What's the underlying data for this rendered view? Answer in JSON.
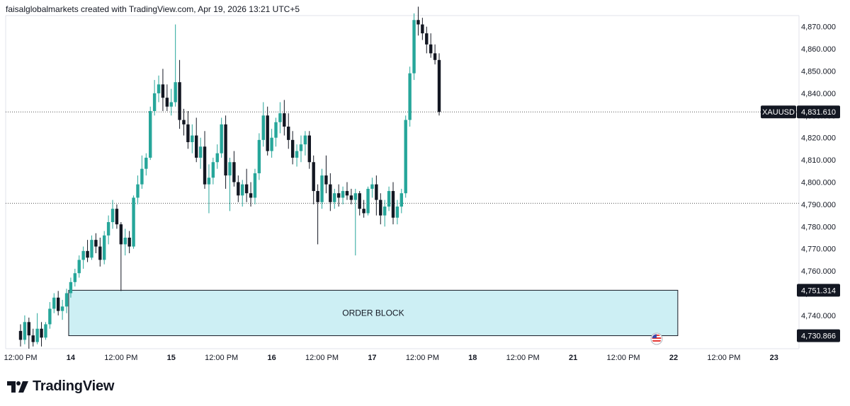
{
  "header": {
    "credit": "faisalglobalmarkets created with TradingView.com, Apr 19, 2026 13:21 UTC+5"
  },
  "brand": {
    "name": "TradingView",
    "logo_icon": "tradingview-logo-icon"
  },
  "colors": {
    "up": "#26a69a",
    "down": "#131722",
    "order_block_fill": "#cdeff4",
    "order_block_border": "#131722",
    "label_bg": "#131722",
    "label_text": "#ffffff",
    "dotted_line": "#555555"
  },
  "chart_data": {
    "type": "candlestick",
    "symbol": "XAUUSD",
    "last_price": "4,831.610",
    "ylim": [
      4725,
      4875
    ],
    "y_ticks": [
      "4,870.000",
      "4,860.000",
      "4,850.000",
      "4,840.000",
      "4,830.000",
      "4,820.000",
      "4,810.000",
      "4,800.000",
      "4,790.000",
      "4,780.000",
      "4,770.000",
      "4,760.000",
      "4,750.000",
      "4,740.000"
    ],
    "y_tick_values": [
      4870,
      4860,
      4850,
      4840,
      4830,
      4820,
      4810,
      4800,
      4790,
      4780,
      4770,
      4760,
      4750,
      4740
    ],
    "x_ticks": [
      "12:00 PM",
      "14",
      "12:00 PM",
      "15",
      "12:00 PM",
      "16",
      "12:00 PM",
      "17",
      "12:00 PM",
      "18",
      "12:00 PM",
      "21",
      "12:00 PM",
      "22",
      "12:00 PM",
      "23"
    ],
    "x_tick_bars": [
      0,
      12,
      24,
      36,
      48,
      60,
      72,
      84,
      96,
      108,
      120,
      132,
      144,
      156,
      168,
      180
    ],
    "horizontal_levels": [
      4831.61,
      4790.5
    ],
    "order_block": {
      "label": "ORDER BLOCK",
      "top_label": "4,751.314",
      "bottom_label": "4,730.866",
      "top": 4751.314,
      "bottom": 4730.866,
      "start_bar": 11.5,
      "end_bar": 157
    },
    "event_icon": "us-flag-icon",
    "candles": [
      [
        4733,
        4736,
        4726,
        4729
      ],
      [
        4729,
        4740,
        4727,
        4737
      ],
      [
        4737,
        4739,
        4725,
        4731
      ],
      [
        4731,
        4734,
        4726,
        4728
      ],
      [
        4728,
        4741,
        4727,
        4734
      ],
      [
        4734,
        4737,
        4726,
        4730
      ],
      [
        4730,
        4737,
        4729,
        4736
      ],
      [
        4736,
        4746,
        4734,
        4743
      ],
      [
        4743,
        4750,
        4741,
        4748
      ],
      [
        4748,
        4751,
        4740,
        4742
      ],
      [
        4742,
        4747,
        4738,
        4744
      ],
      [
        4744,
        4752,
        4741,
        4750
      ],
      [
        4750,
        4757,
        4748,
        4755
      ],
      [
        4755,
        4761,
        4753,
        4759
      ],
      [
        4759,
        4767,
        4757,
        4765
      ],
      [
        4765,
        4771,
        4761,
        4769
      ],
      [
        4769,
        4774,
        4764,
        4766
      ],
      [
        4766,
        4776,
        4765,
        4774
      ],
      [
        4774,
        4777,
        4768,
        4771
      ],
      [
        4771,
        4775,
        4762,
        4765
      ],
      [
        4765,
        4778,
        4763,
        4776
      ],
      [
        4776,
        4785,
        4772,
        4782
      ],
      [
        4782,
        4792,
        4779,
        4788
      ],
      [
        4788,
        4790,
        4779,
        4781
      ],
      [
        4781,
        4782,
        4751,
        4772
      ],
      [
        4772,
        4779,
        4767,
        4775
      ],
      [
        4775,
        4778,
        4768,
        4771
      ],
      [
        4771,
        4794,
        4770,
        4793
      ],
      [
        4793,
        4803,
        4790,
        4799
      ],
      [
        4799,
        4812,
        4797,
        4806
      ],
      [
        4806,
        4813,
        4803,
        4811
      ],
      [
        4811,
        4834,
        4810,
        4832
      ],
      [
        4832,
        4846,
        4830,
        4840
      ],
      [
        4840,
        4848,
        4836,
        4844
      ],
      [
        4844,
        4851,
        4832,
        4838
      ],
      [
        4838,
        4844,
        4832,
        4834
      ],
      [
        4834,
        4842,
        4830,
        4836
      ],
      [
        4836,
        4871,
        4834,
        4845
      ],
      [
        4845,
        4855,
        4824,
        4828
      ],
      [
        4828,
        4833,
        4821,
        4826
      ],
      [
        4826,
        4832,
        4815,
        4818
      ],
      [
        4818,
        4826,
        4813,
        4821
      ],
      [
        4821,
        4829,
        4809,
        4811
      ],
      [
        4811,
        4820,
        4806,
        4816
      ],
      [
        4816,
        4823,
        4797,
        4799
      ],
      [
        4799,
        4808,
        4786,
        4802
      ],
      [
        4802,
        4811,
        4799,
        4809
      ],
      [
        4809,
        4817,
        4806,
        4813
      ],
      [
        4813,
        4829,
        4811,
        4826
      ],
      [
        4826,
        4830,
        4797,
        4803
      ],
      [
        4803,
        4811,
        4787,
        4809
      ],
      [
        4809,
        4814,
        4798,
        4800
      ],
      [
        4800,
        4803,
        4791,
        4794
      ],
      [
        4794,
        4801,
        4789,
        4799
      ],
      [
        4799,
        4806,
        4791,
        4795
      ],
      [
        4795,
        4800,
        4789,
        4793
      ],
      [
        4793,
        4806,
        4790,
        4804
      ],
      [
        4804,
        4822,
        4801,
        4819
      ],
      [
        4819,
        4836,
        4816,
        4830
      ],
      [
        4830,
        4834,
        4812,
        4814
      ],
      [
        4814,
        4824,
        4811,
        4820
      ],
      [
        4820,
        4829,
        4816,
        4827
      ],
      [
        4827,
        4836,
        4822,
        4831
      ],
      [
        4831,
        4837,
        4821,
        4825
      ],
      [
        4825,
        4831,
        4815,
        4819
      ],
      [
        4819,
        4823,
        4808,
        4811
      ],
      [
        4811,
        4817,
        4807,
        4814
      ],
      [
        4814,
        4821,
        4809,
        4817
      ],
      [
        4817,
        4823,
        4812,
        4821
      ],
      [
        4821,
        4823,
        4806,
        4809
      ],
      [
        4809,
        4812,
        4790,
        4796
      ],
      [
        4796,
        4799,
        4772,
        4791
      ],
      [
        4791,
        4806,
        4788,
        4803
      ],
      [
        4803,
        4812,
        4795,
        4799
      ],
      [
        4799,
        4804,
        4787,
        4791
      ],
      [
        4791,
        4797,
        4788,
        4795
      ],
      [
        4795,
        4799,
        4789,
        4793
      ],
      [
        4793,
        4798,
        4790,
        4796
      ],
      [
        4796,
        4800,
        4792,
        4794
      ],
      [
        4794,
        4797,
        4790,
        4792
      ],
      [
        4792,
        4797,
        4767,
        4795
      ],
      [
        4795,
        4796,
        4785,
        4788
      ],
      [
        4788,
        4792,
        4784,
        4786
      ],
      [
        4786,
        4798,
        4785,
        4797
      ],
      [
        4797,
        4802,
        4793,
        4799
      ],
      [
        4799,
        4803,
        4785,
        4792
      ],
      [
        4792,
        4795,
        4781,
        4785
      ],
      [
        4785,
        4792,
        4780,
        4789
      ],
      [
        4789,
        4798,
        4787,
        4796
      ],
      [
        4796,
        4800,
        4781,
        4784
      ],
      [
        4784,
        4792,
        4781,
        4789
      ],
      [
        4789,
        4797,
        4786,
        4795
      ],
      [
        4795,
        4830,
        4793,
        4828
      ],
      [
        4828,
        4852,
        4825,
        4849
      ],
      [
        4849,
        4876,
        4846,
        4873
      ],
      [
        4873,
        4879,
        4866,
        4871
      ],
      [
        4871,
        4874,
        4864,
        4867
      ],
      [
        4867,
        4870,
        4858,
        4862
      ],
      [
        4862,
        4867,
        4856,
        4858
      ],
      [
        4858,
        4862,
        4853,
        4855
      ],
      [
        4855,
        4858,
        4830,
        4831.61
      ]
    ]
  }
}
